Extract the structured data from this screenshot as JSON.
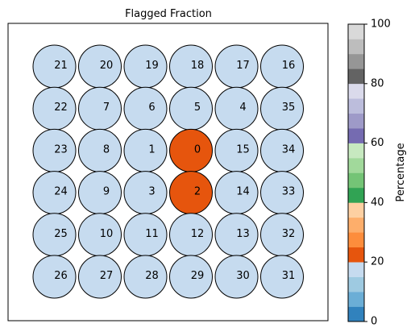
{
  "chart_data": {
    "type": "heatmap",
    "title": "Flagged Fraction",
    "grid": [
      [
        {
          "label": "21",
          "value": 15
        },
        {
          "label": "20",
          "value": 15
        },
        {
          "label": "19",
          "value": 15
        },
        {
          "label": "18",
          "value": 15
        },
        {
          "label": "17",
          "value": 15
        },
        {
          "label": "16",
          "value": 15
        }
      ],
      [
        {
          "label": "22",
          "value": 15
        },
        {
          "label": "7",
          "value": 15
        },
        {
          "label": "6",
          "value": 15
        },
        {
          "label": "5",
          "value": 15
        },
        {
          "label": "4",
          "value": 15
        },
        {
          "label": "35",
          "value": 15
        }
      ],
      [
        {
          "label": "23",
          "value": 15
        },
        {
          "label": "8",
          "value": 15
        },
        {
          "label": "1",
          "value": 15
        },
        {
          "label": "0",
          "value": 22
        },
        {
          "label": "15",
          "value": 15
        },
        {
          "label": "34",
          "value": 15
        }
      ],
      [
        {
          "label": "24",
          "value": 15
        },
        {
          "label": "9",
          "value": 15
        },
        {
          "label": "3",
          "value": 15
        },
        {
          "label": "2",
          "value": 22
        },
        {
          "label": "14",
          "value": 15
        },
        {
          "label": "33",
          "value": 15
        }
      ],
      [
        {
          "label": "25",
          "value": 15
        },
        {
          "label": "10",
          "value": 15
        },
        {
          "label": "11",
          "value": 15
        },
        {
          "label": "12",
          "value": 15
        },
        {
          "label": "13",
          "value": 15
        },
        {
          "label": "32",
          "value": 15
        }
      ],
      [
        {
          "label": "26",
          "value": 15
        },
        {
          "label": "27",
          "value": 15
        },
        {
          "label": "28",
          "value": 15
        },
        {
          "label": "29",
          "value": 15
        },
        {
          "label": "30",
          "value": 15
        },
        {
          "label": "31",
          "value": 15
        }
      ]
    ],
    "colorbar": {
      "label": "Percentage",
      "range": [
        0,
        100
      ],
      "ticks": [
        "0",
        "20",
        "40",
        "60",
        "80",
        "100"
      ],
      "colormap": "tab20c",
      "colors": [
        "#3182bd",
        "#6baed6",
        "#9ecae1",
        "#c6dbef",
        "#e6550d",
        "#fd8d3c",
        "#fdae6b",
        "#fdd0a2",
        "#31a354",
        "#74c476",
        "#a1d99b",
        "#c7e9c0",
        "#756bb1",
        "#9e9ac8",
        "#bcbddc",
        "#dadaeb",
        "#636363",
        "#969696",
        "#bdbdbd",
        "#d9d9d9"
      ]
    },
    "grid_lines": false,
    "axes_ticks": false
  }
}
